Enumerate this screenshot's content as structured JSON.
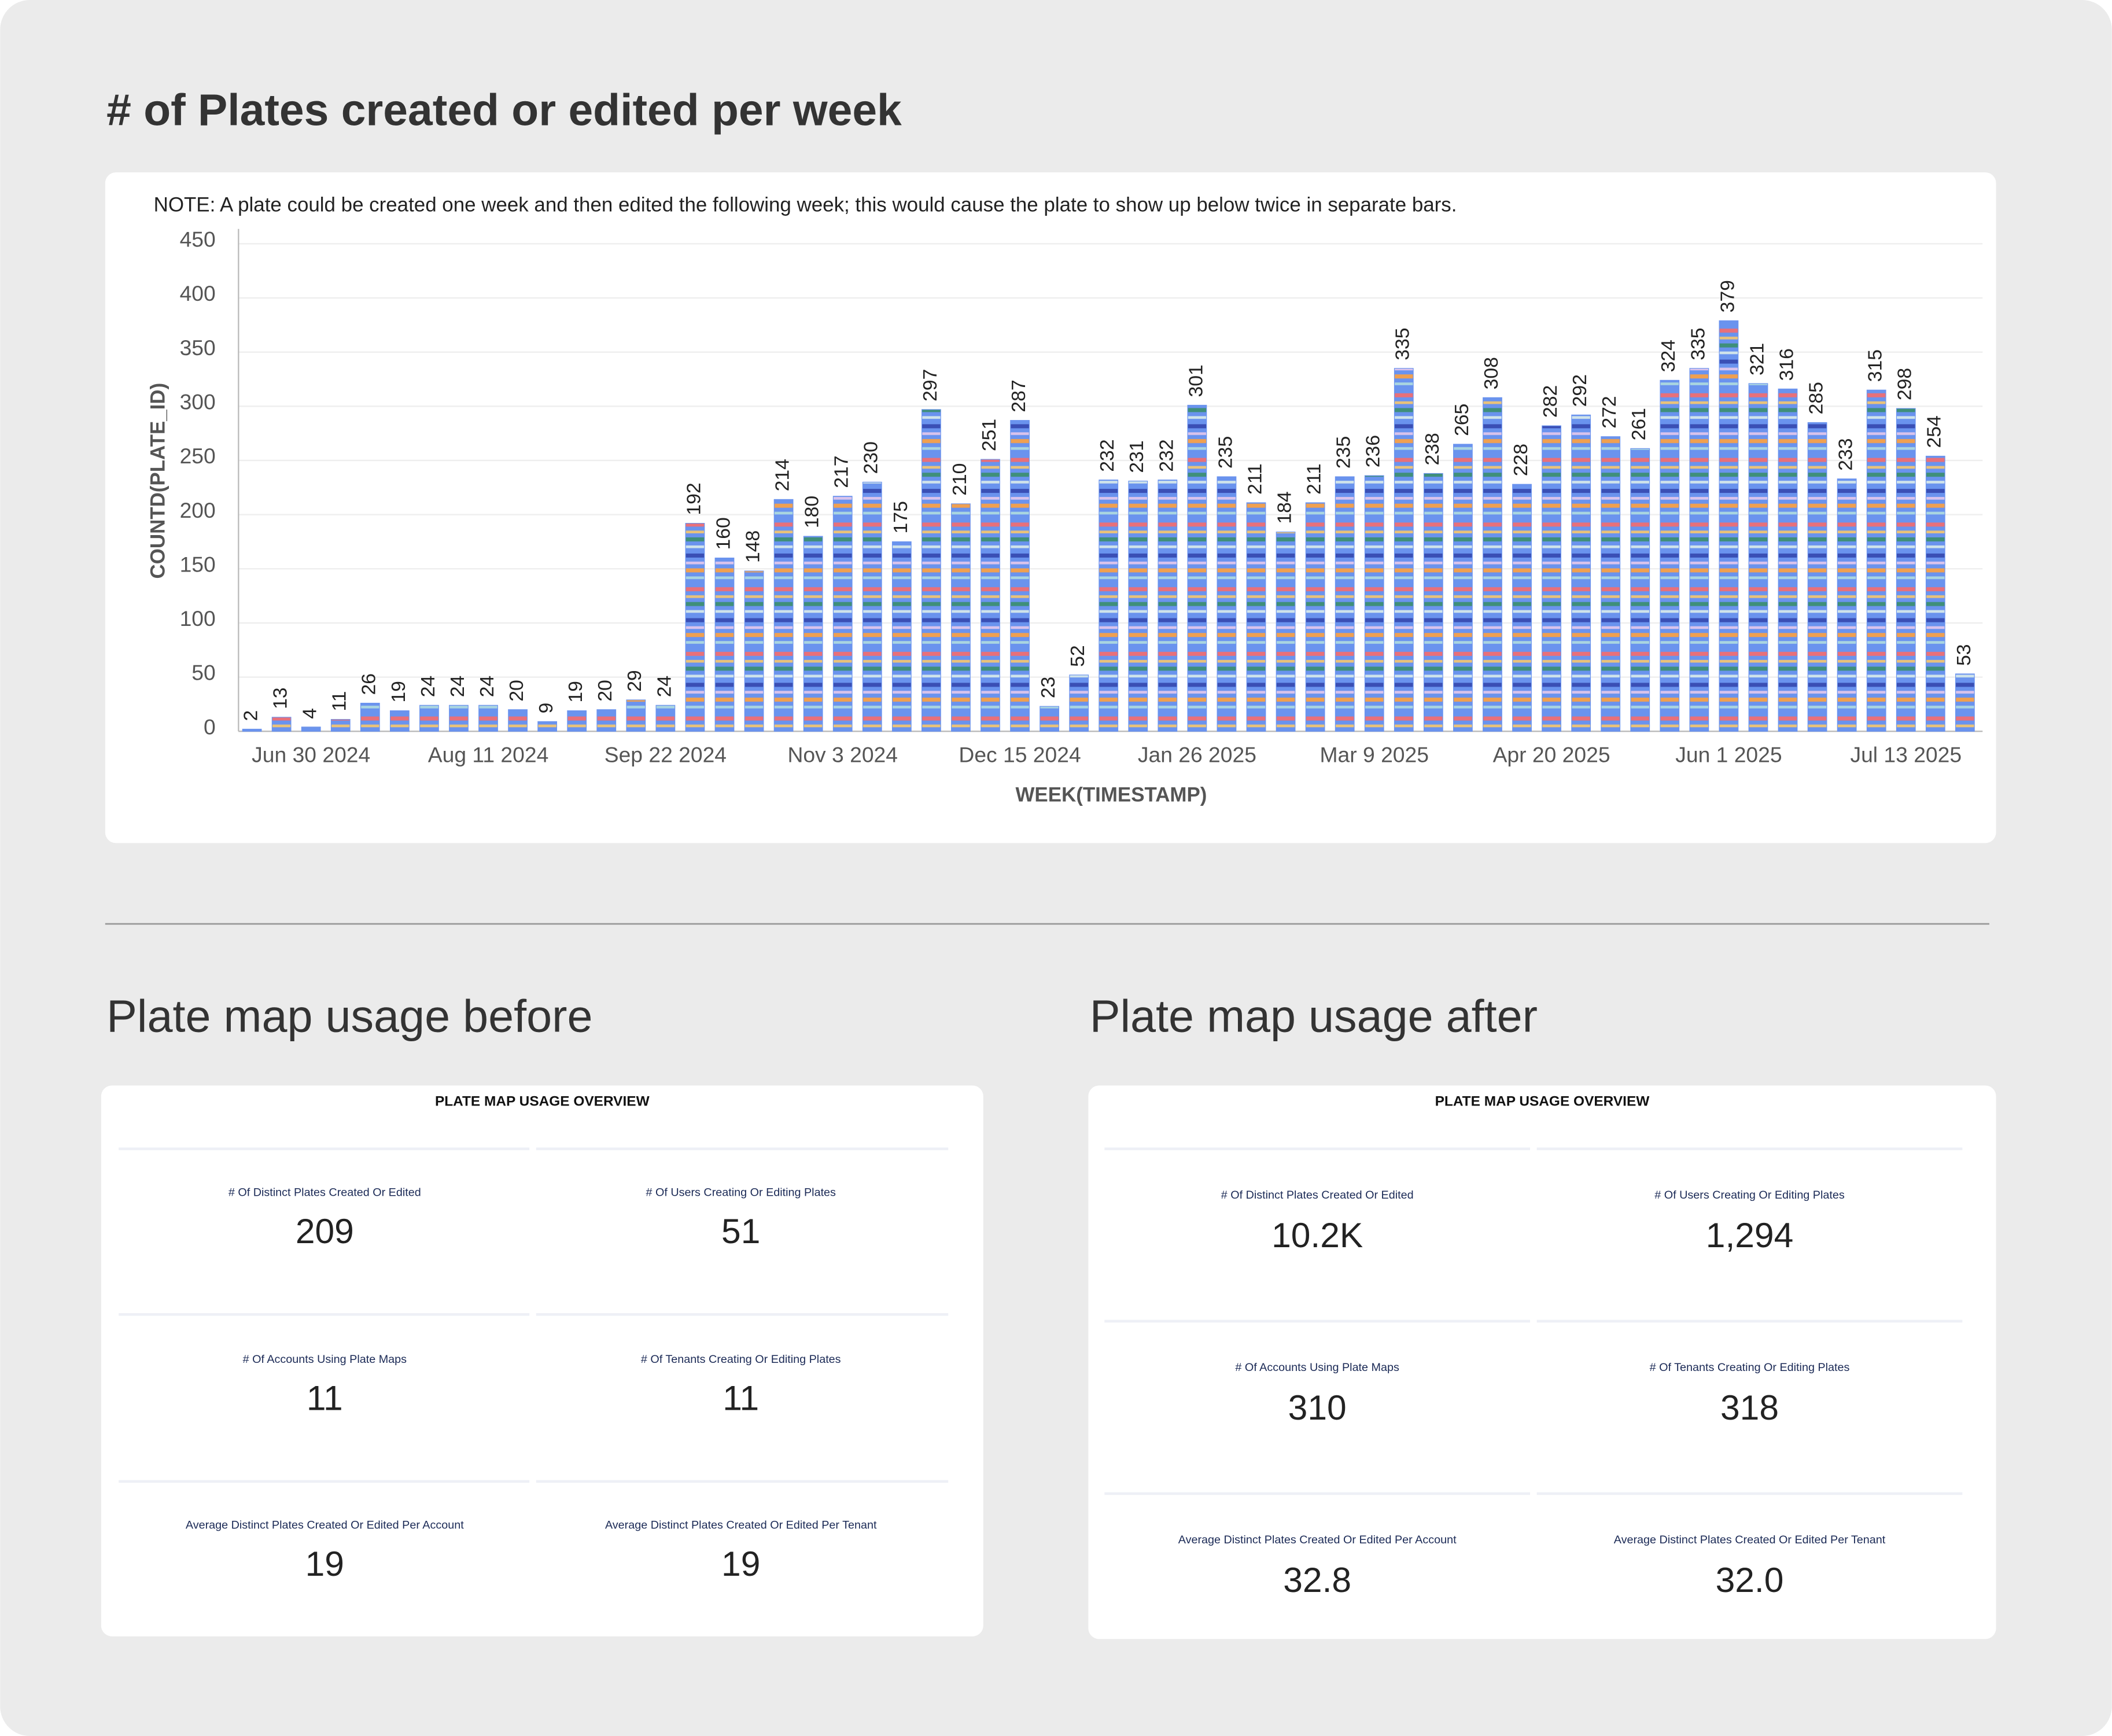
{
  "chart_data": {
    "type": "bar",
    "title": "# of Plates created or edited per week",
    "note": "NOTE: A plate could be created one week and then edited the following week; this would cause the plate to show up below twice in separate bars.",
    "x_label": "WEEK(TIMESTAMP)",
    "y_label": "COUNTD(PLATE_ID)",
    "categories": [
      null,
      null,
      "Jun 30 2024",
      null,
      null,
      null,
      null,
      null,
      "Aug 11 2024",
      null,
      null,
      null,
      null,
      null,
      "Sep 22 2024",
      null,
      null,
      null,
      null,
      null,
      "Nov 3 2024",
      null,
      null,
      null,
      null,
      null,
      "Dec 15 2024",
      null,
      null,
      null,
      null,
      null,
      "Jan 26 2025",
      null,
      null,
      null,
      null,
      null,
      "Mar 9 2025",
      null,
      null,
      null,
      null,
      null,
      "Apr 20 2025",
      null,
      null,
      null,
      null,
      null,
      "Jun 1 2025",
      null,
      null,
      null,
      null,
      null,
      "Jul 13 2025",
      null,
      null
    ],
    "values": [
      2,
      13,
      4,
      11,
      26,
      19,
      24,
      24,
      24,
      20,
      9,
      19,
      20,
      29,
      24,
      192,
      160,
      148,
      214,
      180,
      217,
      230,
      175,
      297,
      210,
      251,
      287,
      23,
      52,
      232,
      231,
      232,
      301,
      235,
      211,
      184,
      211,
      235,
      236,
      335,
      238,
      265,
      308,
      228,
      282,
      292,
      272,
      261,
      324,
      335,
      379,
      321,
      316,
      285,
      233,
      315,
      298,
      254,
      53
    ],
    "color": "#6a93ee",
    "ylim": [
      0,
      450
    ],
    "yticks": [
      0,
      50,
      100,
      150,
      200,
      250,
      300,
      350,
      400,
      450
    ],
    "grid": true
  },
  "sections": [
    {
      "heading": "Plate map usage before",
      "card_title": "PLATE MAP USAGE OVERVIEW",
      "stats": [
        {
          "label": "# Of Distinct Plates Created Or Edited",
          "value": "209"
        },
        {
          "label": "# Of Users Creating Or Editing Plates",
          "value": "51"
        },
        {
          "label": "# Of Accounts Using Plate Maps",
          "value": "11"
        },
        {
          "label": "# Of Tenants Creating Or Editing Plates",
          "value": "11"
        },
        {
          "label": "Average Distinct Plates Created Or Edited Per Account",
          "value": "19"
        },
        {
          "label": "Average Distinct Plates Created Or Edited Per Tenant",
          "value": "19"
        }
      ]
    },
    {
      "heading": "Plate map usage after",
      "card_title": "PLATE MAP USAGE OVERVIEW",
      "stats": [
        {
          "label": "# Of Distinct Plates Created Or Edited",
          "value": "10.2K"
        },
        {
          "label": "# Of Users Creating Or Editing Plates",
          "value": "1,294"
        },
        {
          "label": "# Of Accounts Using Plate Maps",
          "value": "310"
        },
        {
          "label": "# Of Tenants Creating Or Editing Plates",
          "value": "318"
        },
        {
          "label": "Average Distinct Plates Created Or Edited Per Account",
          "value": "32.8"
        },
        {
          "label": "Average Distinct Plates Created Or Edited Per Tenant",
          "value": "32.0"
        }
      ]
    }
  ]
}
